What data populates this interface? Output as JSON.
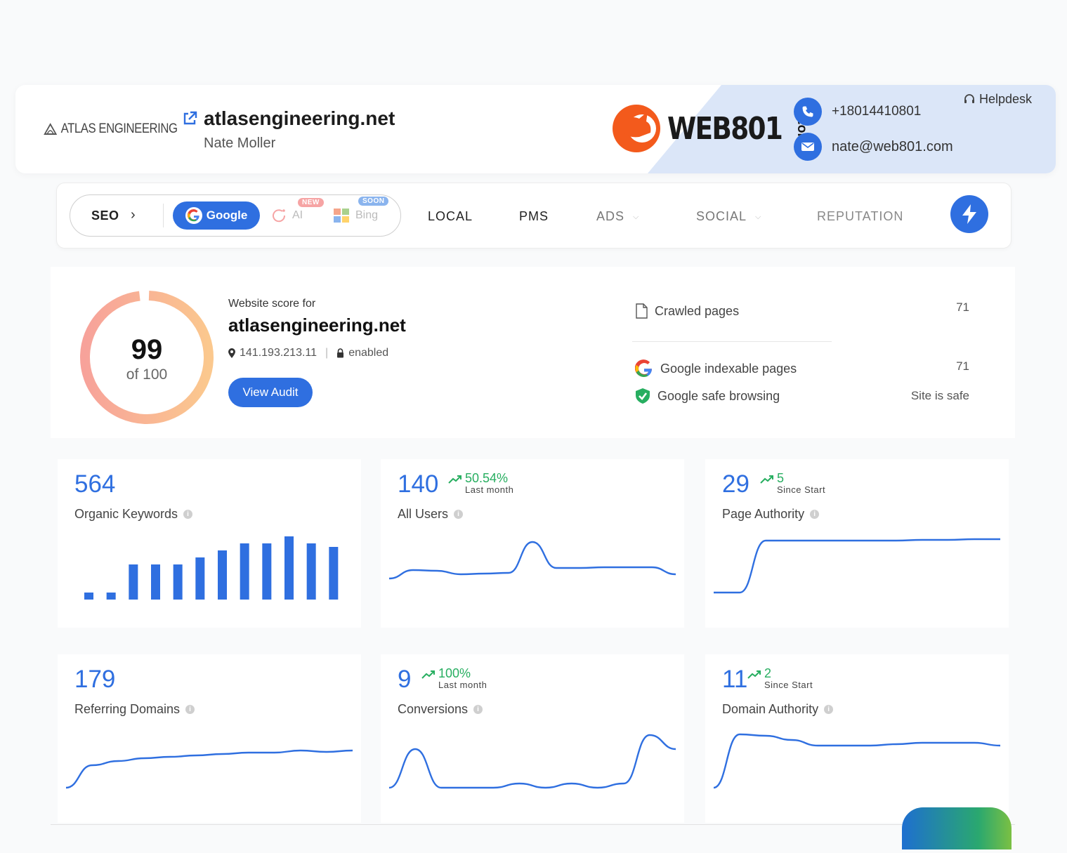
{
  "header": {
    "company_logo_text": "ATLAS ENGINEERING",
    "site": "atlasengineering.net",
    "owner": "Nate Moller",
    "brand": {
      "name": "WEB801",
      "suffix": ".COM"
    },
    "phone": "+18014410801",
    "email": "nate@web801.com",
    "helpdesk_label": "Helpdesk",
    "panel_color": "#dbe6f8"
  },
  "nav": {
    "seo_label": "SEO",
    "google_label": "Google",
    "ai_label": "AI",
    "ai_badge": "NEW",
    "bing_label": "Bing",
    "bing_badge": "SOON",
    "items": [
      "LOCAL",
      "PMS",
      "ADS",
      "SOCIAL",
      "REPUTATION"
    ],
    "accent": "#2f6fe0"
  },
  "score": {
    "caption": "Website score for",
    "domain": "atlasengineering.net",
    "value": "99",
    "of_label": "of 100",
    "fraction": 0.99,
    "ip": "141.193.213.11",
    "ssl": "enabled",
    "button": "View Audit"
  },
  "stats": {
    "crawled_label": "Crawled pages",
    "crawled_value": "71",
    "indexable_label": "Google indexable pages",
    "indexable_value": "71",
    "safe_label": "Google safe browsing",
    "safe_value": "Site is safe"
  },
  "cards": [
    {
      "value": "564",
      "label": "Organic Keywords",
      "trend": "",
      "trend_sub": "",
      "chart": "bar",
      "series": [
        1,
        1,
        5,
        5,
        5,
        6,
        7,
        8,
        8,
        9,
        8,
        7.5
      ]
    },
    {
      "value": "140",
      "label": "All Users",
      "trend": "50.54%",
      "trend_sub": "Last month",
      "chart": "line",
      "series": [
        3,
        4.2,
        4.1,
        3.6,
        3.7,
        3.8,
        8.2,
        4.5,
        4.5,
        4.6,
        4.6,
        4.6,
        3.6
      ]
    },
    {
      "value": "29",
      "label": "Page Authority",
      "trend": "5",
      "trend_sub": "Since Start",
      "chart": "line",
      "series": [
        1,
        1,
        8.4,
        8.4,
        8.4,
        8.4,
        8.4,
        8.4,
        8.5,
        8.5,
        8.6,
        8.6
      ]
    },
    {
      "value": "179",
      "label": "Referring Domains",
      "trend": "",
      "trend_sub": "",
      "chart": "line",
      "series": [
        1,
        4.2,
        4.8,
        5.2,
        5.4,
        5.6,
        5.8,
        6,
        6,
        6.3,
        6.1,
        6.3
      ]
    },
    {
      "value": "9",
      "label": "Conversions",
      "trend": "100%",
      "trend_sub": "Last month",
      "chart": "line",
      "series": [
        1,
        6.5,
        1,
        1,
        1,
        1.6,
        1,
        1.6,
        1,
        1.6,
        8.5,
        6.5
      ]
    },
    {
      "value": "11",
      "label": "Domain Authority",
      "trend": "2",
      "trend_sub": "Since Start",
      "chart": "line",
      "series": [
        1,
        8.6,
        8.4,
        7.8,
        7,
        7,
        7,
        7.2,
        7.4,
        7.4,
        7.4,
        7
      ]
    }
  ]
}
